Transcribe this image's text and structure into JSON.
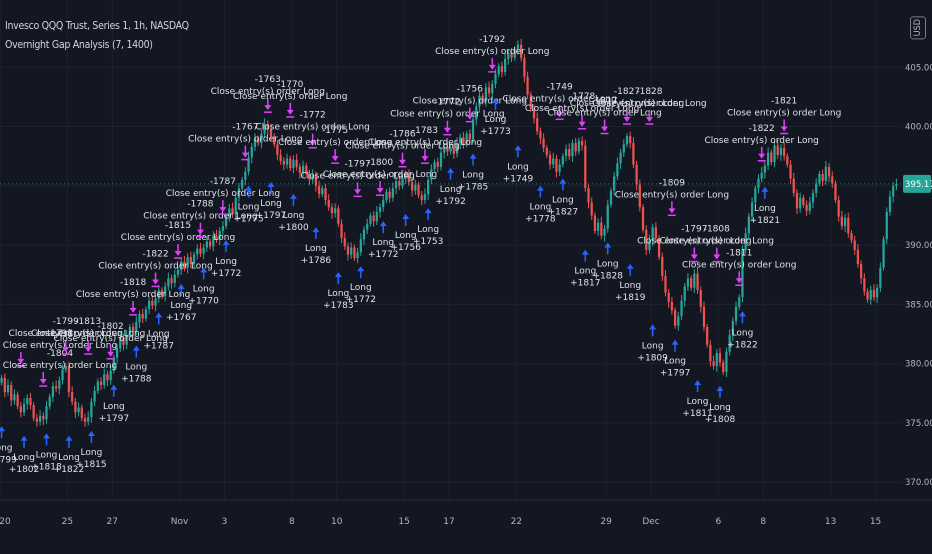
{
  "header": {
    "symbol_line": "Invesco QQQ Trust, Series 1, 1h, NASDAQ",
    "indicator_line": "Overnight Gap Analysis (7, 1400)",
    "currency_badge": "USD"
  },
  "colors": {
    "background": "#131722",
    "grid": "#1e222d",
    "up_candle": "#26a69a",
    "down_candle": "#ef5350",
    "long_arrow": "#2962ff",
    "close_arrow": "#e040fb",
    "label_text": "#e0e3eb",
    "axis_text": "#b2b5be",
    "price_tag": "#26a69a"
  },
  "chart_data": {
    "type": "candlestick",
    "title": "Invesco QQQ Trust, Series 1, 1h, NASDAQ",
    "y_axis": {
      "ticks": [
        "405.00",
        "400.00",
        "395.00",
        "390.00",
        "385.00",
        "380.00",
        "375.00",
        "370.00"
      ],
      "range": [
        368.5,
        410.0
      ],
      "last_price": "395.17"
    },
    "x_axis": {
      "ticks": [
        "20",
        "25",
        "27",
        "Nov",
        "3",
        "8",
        "10",
        "15",
        "17",
        "22",
        "29",
        "Dec",
        "6",
        "8",
        "13",
        "15"
      ]
    },
    "series": [
      {
        "day": "20",
        "closes": [
          378.8,
          377.6,
          378.2,
          376.9,
          377.4,
          376.4,
          375.9
        ]
      },
      {
        "day": "21",
        "closes": [
          376.6,
          377.1,
          376.5,
          375.4,
          375.1,
          375.6,
          375.3
        ]
      },
      {
        "day": "22",
        "closes": [
          376.4,
          377.2,
          378.1,
          377.9,
          378.6,
          379.5,
          379.8
        ]
      },
      {
        "day": "25",
        "closes": [
          377.6,
          376.8,
          375.9,
          376.3,
          375.4,
          375.1,
          375.5
        ]
      },
      {
        "day": "26",
        "closes": [
          376.8,
          377.7,
          378.5,
          378.2,
          379.1,
          378.6,
          379.4
        ]
      },
      {
        "day": "27",
        "closes": [
          380.5,
          381.3,
          382.2,
          381.6,
          382.4,
          383.1,
          382.7
        ]
      },
      {
        "day": "28",
        "closes": [
          383.5,
          384.2,
          383.8,
          384.6,
          385.3,
          384.9,
          385.5
        ]
      },
      {
        "day": "29",
        "closes": [
          386.2,
          385.7,
          386.5,
          387.2,
          386.8,
          387.5,
          387.9
        ]
      },
      {
        "day": "Nov",
        "closes": [
          388.6,
          388.1,
          389.0,
          388.4,
          389.2,
          389.7,
          389.3
        ]
      },
      {
        "day": "2",
        "closes": [
          389.8,
          390.3,
          389.9,
          390.8,
          390.5,
          391.2,
          391.6
        ]
      },
      {
        "day": "3",
        "closes": [
          392.4,
          393.1,
          392.6,
          394.0,
          394.8,
          395.5,
          396.2
        ]
      },
      {
        "day": "4",
        "closes": [
          397.4,
          398.3,
          399.0,
          398.6,
          399.4,
          400.2,
          399.8
        ]
      },
      {
        "day": "5",
        "closes": [
          399.2,
          398.5,
          397.6,
          397.1,
          396.8,
          397.3,
          396.5
        ]
      },
      {
        "day": "8",
        "closes": [
          397.2,
          396.6,
          396.1,
          396.7,
          396.0,
          395.5,
          395.9
        ]
      },
      {
        "day": "9",
        "closes": [
          395.0,
          394.3,
          394.8,
          393.8,
          393.2,
          392.7,
          393.1
        ]
      },
      {
        "day": "10",
        "closes": [
          391.8,
          390.6,
          389.9,
          389.2,
          389.8,
          388.9,
          389.4
        ]
      },
      {
        "day": "11",
        "closes": [
          390.5,
          391.3,
          391.8,
          392.5,
          392.0,
          392.8,
          393.2
        ]
      },
      {
        "day": "12",
        "closes": [
          393.8,
          394.5,
          394.0,
          394.8,
          395.4,
          395.0,
          395.6
        ]
      },
      {
        "day": "15",
        "closes": [
          395.9,
          395.3,
          394.6,
          395.1,
          394.2,
          393.8,
          394.3
        ]
      },
      {
        "day": "16",
        "closes": [
          395.5,
          396.4,
          397.0,
          396.6,
          397.8,
          398.3,
          397.9
        ]
      },
      {
        "day": "17",
        "closes": [
          398.2,
          397.7,
          398.6,
          399.1,
          398.5,
          399.4,
          398.9
        ]
      },
      {
        "day": "18",
        "closes": [
          400.6,
          401.7,
          402.6,
          402.1,
          403.3,
          402.8,
          403.6
        ]
      },
      {
        "day": "19",
        "closes": [
          404.4,
          405.1,
          404.6,
          405.7,
          406.2,
          405.8,
          406.5
        ]
      },
      {
        "day": "22",
        "closes": [
          406.9,
          405.8,
          404.2,
          402.7,
          401.5,
          400.7,
          399.6
        ]
      },
      {
        "day": "23",
        "closes": [
          399.0,
          398.2,
          397.6,
          396.8,
          397.3,
          396.2,
          396.8
        ]
      },
      {
        "day": "24",
        "closes": [
          397.5,
          398.1,
          397.5,
          398.6,
          397.9,
          398.8,
          398.4
        ]
      },
      {
        "day": "26",
        "closes": [
          394.8,
          393.6,
          392.5,
          391.2,
          391.9,
          390.8,
          391.4
        ]
      },
      {
        "day": "29",
        "closes": [
          393.4,
          394.6,
          395.8,
          396.9,
          397.8,
          398.5,
          399.2
        ]
      },
      {
        "day": "30",
        "closes": [
          398.6,
          396.8,
          395.1,
          393.2,
          391.3,
          389.6,
          390.4
        ]
      },
      {
        "day": "Dec",
        "closes": [
          391.5,
          390.6,
          389.0,
          387.4,
          386.0,
          385.2,
          384.5
        ]
      },
      {
        "day": "2",
        "closes": [
          383.2,
          384.0,
          385.3,
          386.5,
          387.2,
          386.4,
          387.6
        ]
      },
      {
        "day": "3",
        "closes": [
          386.2,
          384.8,
          383.1,
          381.6,
          380.2,
          379.8,
          380.9
        ]
      },
      {
        "day": "6",
        "closes": [
          380.1,
          379.3,
          381.0,
          382.4,
          383.6,
          384.8,
          385.6
        ]
      },
      {
        "day": "7",
        "closes": [
          389.6,
          391.0,
          392.4,
          393.6,
          394.8,
          395.6,
          396.1
        ]
      },
      {
        "day": "8",
        "closes": [
          396.7,
          397.8,
          397.0,
          398.4,
          397.6,
          398.2,
          397.5
        ]
      },
      {
        "day": "9",
        "closes": [
          396.8,
          395.6,
          394.4,
          393.1,
          394.0,
          393.4,
          392.9
        ]
      },
      {
        "day": "10",
        "closes": [
          393.6,
          394.4,
          395.2,
          396.0,
          395.4,
          396.6,
          395.8
        ]
      },
      {
        "day": "13",
        "closes": [
          395.2,
          393.8,
          392.4,
          391.6,
          392.3,
          391.0,
          390.4
        ]
      },
      {
        "day": "14",
        "closes": [
          389.6,
          388.4,
          387.2,
          386.1,
          385.4,
          386.2,
          385.6
        ]
      },
      {
        "day": "15",
        "closes": [
          386.4,
          388.1,
          390.5,
          392.8,
          394.1,
          395.0,
          395.17
        ]
      }
    ],
    "annotations": {
      "entries": [
        {
          "text": [
            "Long",
            "+1799"
          ]
        },
        {
          "text": [
            "Long",
            "+1802"
          ]
        },
        {
          "text": [
            "Long",
            "+1818"
          ]
        },
        {
          "text": [
            "Long",
            "+1822"
          ]
        },
        {
          "text": [
            "Long",
            "+1815"
          ]
        },
        {
          "text": [
            "Long",
            "+1797"
          ]
        },
        {
          "text": [
            "Long",
            "+1788"
          ]
        },
        {
          "text": [
            "Long",
            "+1787"
          ]
        },
        {
          "text": [
            "Long",
            "+1767"
          ]
        },
        {
          "text": [
            "Long",
            "+1770"
          ]
        },
        {
          "text": [
            "Long",
            "+1772"
          ]
        },
        {
          "text": [
            "Long",
            "+1775"
          ]
        },
        {
          "text": [
            "Long",
            "+1797"
          ]
        },
        {
          "text": [
            "Long",
            "+1800"
          ]
        },
        {
          "text": [
            "Long",
            "+1786"
          ]
        },
        {
          "text": [
            "Long",
            "+1783"
          ]
        },
        {
          "text": [
            "Long",
            "+1772"
          ]
        },
        {
          "text": [
            "Long",
            "+1772"
          ]
        },
        {
          "text": [
            "Long",
            "+1756"
          ]
        },
        {
          "text": [
            "Long",
            "+1753"
          ]
        },
        {
          "text": [
            "Long",
            "+1792"
          ]
        },
        {
          "text": [
            "Long",
            "+1785"
          ]
        },
        {
          "text": [
            "Long",
            "+1773"
          ]
        },
        {
          "text": [
            "Long",
            "+1749"
          ]
        },
        {
          "text": [
            "Long",
            "+1778"
          ]
        },
        {
          "text": [
            "Long",
            "+1827"
          ]
        },
        {
          "text": [
            "Long",
            "+1817"
          ]
        },
        {
          "text": [
            "Long",
            "+1828"
          ]
        },
        {
          "text": [
            "Long",
            "+1819"
          ]
        },
        {
          "text": [
            "Long",
            "+1809"
          ]
        },
        {
          "text": [
            "Long",
            "+1797"
          ]
        },
        {
          "text": [
            "Long",
            "+1811"
          ]
        },
        {
          "text": [
            "Long",
            "+1808"
          ]
        },
        {
          "text": [
            "Long",
            "+1822"
          ]
        },
        {
          "text": [
            "Long",
            "+1821"
          ]
        }
      ],
      "exits": [
        {
          "text": [
            "-1798",
            "Close entry(s) order Long"
          ]
        },
        {
          "text": [
            "-1804",
            "Close entry(s) order Long"
          ]
        },
        {
          "text": [
            "-1799",
            "Close entry(s) order Long"
          ]
        },
        {
          "text": [
            "-1813",
            "Close entry(s) order Long"
          ]
        },
        {
          "text": [
            "-1802",
            "Close entry(s) order Long"
          ]
        },
        {
          "text": [
            "-1818",
            "Close entry(s) order Long"
          ]
        },
        {
          "text": [
            "-1822",
            "Close entry(s) order Long"
          ]
        },
        {
          "text": [
            "-1815",
            "Close entry(s) order Long"
          ]
        },
        {
          "text": [
            "-1788",
            "Close entry(s) order Long"
          ]
        },
        {
          "text": [
            "-1787",
            "Close entry(s) order Long"
          ]
        },
        {
          "text": [
            "-1767",
            "Close entry(s) order Long"
          ]
        },
        {
          "text": [
            "-1763",
            "Close entry(s) order Long"
          ]
        },
        {
          "text": [
            "-1770",
            "Close entry(s) order Long"
          ]
        },
        {
          "text": [
            "-1772",
            "Close entry(s) order Long"
          ]
        },
        {
          "text": [
            "-1775",
            "Close entry(s) order Long"
          ]
        },
        {
          "text": [
            "-1797",
            "Close entry(s) order Long"
          ]
        },
        {
          "text": [
            "-1800",
            "Close entry(s) order Long"
          ]
        },
        {
          "text": [
            "-1786",
            "Close entry(s) order Long"
          ]
        },
        {
          "text": [
            "-1783",
            "Close entry(s) order Long"
          ]
        },
        {
          "text": [
            "-1772",
            "Close entry(s) order Long"
          ]
        },
        {
          "text": [
            "-1756",
            "Close entry(s) order Long"
          ]
        },
        {
          "text": [
            "-1792",
            "Close entry(s) order Long"
          ]
        },
        {
          "text": [
            "-1785",
            "Close entry(s) order Long"
          ]
        },
        {
          "text": [
            "-1773",
            "Close entry(s) order Long"
          ]
        },
        {
          "text": [
            "-1749",
            "Close entry(s) order Long"
          ]
        },
        {
          "text": [
            "-1778",
            "Close entry(s) order Long"
          ]
        },
        {
          "text": [
            "-1817",
            "Close entry(s) order Long"
          ]
        },
        {
          "text": [
            "-1827",
            "Close entry(s) order Long"
          ]
        },
        {
          "text": [
            "-1828",
            "Close entry(s) order Long"
          ]
        },
        {
          "text": [
            "-1809",
            "Close entry(s) order Long"
          ]
        },
        {
          "text": [
            "-1797",
            "Close entry(s) order Long"
          ]
        },
        {
          "text": [
            "-1808",
            "Close entry(s) order Long"
          ]
        },
        {
          "text": [
            "-1811",
            "Close entry(s) order Long"
          ]
        },
        {
          "text": [
            "-1822",
            "Close entry(s) order Long"
          ]
        },
        {
          "text": [
            "-1821",
            "Close entry(s) order Long"
          ]
        }
      ]
    }
  }
}
